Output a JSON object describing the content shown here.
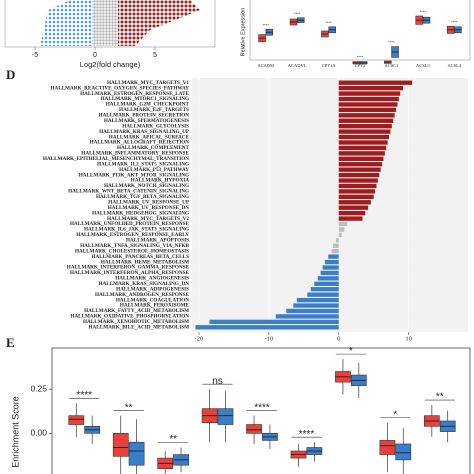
{
  "panel_labels": [
    "D",
    "E"
  ],
  "chart_data": [
    {
      "type": "volcano",
      "xlabel": "Log2(fold change)",
      "xlim": [
        -7.5,
        10
      ],
      "xticks": [
        -5,
        0,
        5
      ]
    },
    {
      "type": "box",
      "ylabel": "Relative Expression",
      "categories": [
        "ACADM",
        "ACADVL",
        "CPT1A",
        "CPT2",
        "ACSL1",
        "ACSL3",
        "ACSL4"
      ],
      "ylim": [
        0,
        10
      ],
      "series": [
        {
          "color": "#e8413c",
          "boxes": [
            [
              4.7,
              5.3,
              5.9
            ],
            [
              7.5,
              8.0,
              8.5
            ],
            [
              5.5,
              6.0,
              6.5
            ],
            [
              1.0,
              1.2,
              1.4
            ],
            [
              1.1,
              1.3,
              1.5
            ],
            [
              7.6,
              8.3,
              9.0
            ],
            [
              6.1,
              6.7,
              7.3
            ]
          ]
        },
        {
          "color": "#3a7dc9",
          "boxes": [
            [
              5.8,
              6.3,
              6.8
            ],
            [
              7.9,
              8.3,
              8.7
            ],
            [
              6.2,
              6.7,
              7.2
            ],
            [
              1.0,
              1.2,
              1.4
            ],
            [
              2.1,
              3.0,
              3.9
            ],
            [
              7.8,
              8.3,
              8.8
            ],
            [
              6.2,
              6.7,
              7.2
            ]
          ]
        }
      ],
      "significance": [
        "****",
        "****",
        "****",
        "****",
        "****",
        "****",
        "****"
      ]
    },
    {
      "type": "hbar",
      "categories": [
        "HALLMARK_MYC_TARGETS_V1",
        "HALLMARK_REACTIVE_OXYGEN_SPECIES_PATHWAY",
        "HALLMARK_ESTROGEN_RESPONSE_LATE",
        "HALLMARK_MTORC1_SIGNALING",
        "HALLMARK_G2M_CHECKPOINT",
        "HALLMARK_E2F_TARGETS",
        "HALLMARK_PROTEIN_SECRETION",
        "HALLMARK_SPERMATOGENESIS",
        "HALLMARK_GLYCOLYSIS",
        "HALLMARK_KRAS_SIGNALING_UP",
        "HALLMARK_APICAL_SURFACE",
        "HALLMARK_ALLOGRAFT_REJECTION",
        "HALLMARK_COMPLEMENT",
        "HALLMARK_INFLAMMATORY_RESPONSE",
        "HALLMARK_EPITHELIAL_MESENCHYMAL_TRANSITION",
        "HALLMARK_IL2_STAT5_SIGNALING",
        "HALLMARK_P53_PATHWAY",
        "HALLMARK_PI3K_AKT_MTOR_SIGNALING",
        "HALLMARK_HYPOXIA",
        "HALLMARK_NOTCH_SIGNALING",
        "HALLMARK_WNT_BETA_CATENIN_SIGNALING",
        "HALLMARK_TGF_BETA_SIGNALING",
        "HALLMARK_UV_RESPONSE_UP",
        "HALLMARK_UV_RESPONSE_DN",
        "HALLMARK_HEDGEHOG_SIGNALING",
        "HALLMARK_MYC_TARGETS_V2",
        "HALLMARK_UNFOLDED_PROTEIN_RESPONSE",
        "HALLMARK_IL6_JAK_STAT3_SIGNALING",
        "HALLMARK_ESTROGEN_RESPONSE_EARLY",
        "HALLMARK_APOPTOSIS",
        "HALLMARK_TNFA_SIGNALING_VIA_NFKB",
        "HALLMARK_CHOLESTEROL_HOMEOSTASIS",
        "HALLMARK_PANCREAS_BETA_CELLS",
        "HALLMARK_HEME_METABOLISM",
        "HALLMARK_INTERFERON_GAMMA_RESPONSE",
        "HALLMARK_INTERFERON_ALPHA_RESPONSE",
        "HALLMARK_ANGIOGENESIS",
        "HALLMARK_KRAS_SIGNALING_DN",
        "HALLMARK_ADIPOGENESIS",
        "HALLMARK_ANDROGEN_RESPONSE",
        "HALLMARK_COAGULATION",
        "HALLMARK_PEROXISOME",
        "HALLMARK_FATTY_ACID_METABOLISM",
        "HALLMARK_OXIDATIVE_PHOSPHORYLATION",
        "HALLMARK_XENOBIOTIC_METABOLISM",
        "HALLMARK_BILE_ACID_METABOLISM"
      ],
      "values": [
        10.5,
        9.2,
        8.8,
        8.6,
        8.4,
        8.2,
        8.0,
        7.8,
        7.6,
        7.4,
        7.2,
        7.0,
        6.8,
        6.6,
        6.4,
        6.2,
        6.0,
        5.8,
        5.6,
        5.4,
        5.2,
        5.0,
        4.6,
        4.2,
        3.8,
        3.4,
        1.2,
        0.8,
        0.4,
        -0.4,
        -0.8,
        -1.0,
        -1.5,
        -2.0,
        -2.3,
        -2.6,
        -3.0,
        -3.5,
        -4.0,
        -4.5,
        -6.0,
        -6.5,
        -7.5,
        -9.0,
        -18.5,
        -20.5
      ],
      "colors": [
        "#9e1b1e",
        "#9e1b1e",
        "#9e1b1e",
        "#9e1b1e",
        "#9e1b1e",
        "#9e1b1e",
        "#9e1b1e",
        "#9e1b1e",
        "#9e1b1e",
        "#9e1b1e",
        "#9e1b1e",
        "#9e1b1e",
        "#9e1b1e",
        "#9e1b1e",
        "#9e1b1e",
        "#9e1b1e",
        "#9e1b1e",
        "#9e1b1e",
        "#9e1b1e",
        "#9e1b1e",
        "#9e1b1e",
        "#9e1b1e",
        "#9e1b1e",
        "#9e1b1e",
        "#9e1b1e",
        "#9e1b1e",
        "#bdbdbd",
        "#bdbdbd",
        "#bdbdbd",
        "#bdbdbd",
        "#bdbdbd",
        "#bdbdbd",
        "#3a7dc9",
        "#3a7dc9",
        "#3a7dc9",
        "#3a7dc9",
        "#3a7dc9",
        "#3a7dc9",
        "#3a7dc9",
        "#3a7dc9",
        "#3a7dc9",
        "#3a7dc9",
        "#3a7dc9",
        "#3a7dc9",
        "#3a7dc9",
        "#3a7dc9"
      ],
      "xlim": [
        -21,
        18.5
      ],
      "xticks": [
        -20,
        -10,
        0,
        10
      ],
      "grid": true
    },
    {
      "type": "box",
      "ylabel": "Enrichment Score",
      "categories": [
        null,
        null,
        null,
        null,
        null,
        null,
        null,
        null,
        null
      ],
      "ylim": [
        -0.23,
        0.5
      ],
      "yticks": [
        {
          "value": 0.25,
          "label": "0.25"
        },
        {
          "value": 0,
          "label": "0.00"
        }
      ],
      "series": [
        {
          "color": "#e8413c",
          "boxes": [
            [
              -0.02,
              0.05,
              0.08,
              0.1,
              0.17
            ],
            [
              -0.23,
              -0.13,
              -0.08,
              0.0,
              0.1
            ],
            [
              -0.23,
              -0.2,
              -0.17,
              -0.14,
              -0.1
            ],
            [
              -0.05,
              0.06,
              0.1,
              0.14,
              0.25
            ],
            [
              -0.06,
              0.0,
              0.02,
              0.05,
              0.1
            ],
            [
              -0.19,
              -0.14,
              -0.12,
              -0.1,
              -0.06
            ],
            [
              0.22,
              0.29,
              0.32,
              0.35,
              0.42
            ],
            [
              -0.22,
              -0.12,
              -0.07,
              -0.04,
              0.06
            ],
            [
              -0.02,
              0.04,
              0.07,
              0.1,
              0.16
            ]
          ]
        },
        {
          "color": "#3a7dc9",
          "boxes": [
            [
              -0.06,
              0.0,
              0.02,
              0.04,
              0.1
            ],
            [
              -0.23,
              -0.18,
              -0.1,
              -0.05,
              0.08
            ],
            [
              -0.22,
              -0.18,
              -0.15,
              -0.12,
              -0.08
            ],
            [
              -0.05,
              0.05,
              0.1,
              0.14,
              0.24
            ],
            [
              -0.09,
              -0.04,
              -0.02,
              0.0,
              0.05
            ],
            [
              -0.16,
              -0.12,
              -0.1,
              -0.08,
              -0.05
            ],
            [
              0.2,
              0.27,
              0.3,
              0.33,
              0.4
            ],
            [
              -0.23,
              -0.15,
              -0.11,
              -0.06,
              0.03
            ],
            [
              -0.05,
              0.01,
              0.04,
              0.07,
              0.13
            ]
          ]
        }
      ],
      "significance": [
        "****",
        "**",
        "**",
        "ns",
        "****",
        "****",
        "*",
        "*",
        "**"
      ]
    }
  ]
}
